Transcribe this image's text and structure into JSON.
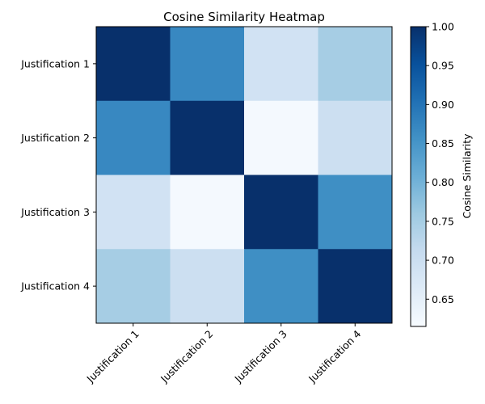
{
  "chart_data": {
    "type": "heatmap",
    "title": "Cosine Similarity Heatmap",
    "rows": [
      "Justification 1",
      "Justification 2",
      "Justification 3",
      "Justification 4"
    ],
    "columns": [
      "Justification 1",
      "Justification 2",
      "Justification 3",
      "Justification 4"
    ],
    "values": [
      [
        1.0,
        0.87,
        0.69,
        0.75
      ],
      [
        0.87,
        1.0,
        0.62,
        0.7
      ],
      [
        0.69,
        0.62,
        1.0,
        0.86
      ],
      [
        0.75,
        0.7,
        0.86,
        1.0
      ]
    ],
    "colormap": "Blues",
    "colorbar": {
      "label": "Cosine Similarity",
      "vmin": 0.615,
      "vmax": 1.0,
      "ticks": [
        "0.65",
        "0.70",
        "0.75",
        "0.80",
        "0.85",
        "0.90",
        "0.95",
        "1.00"
      ]
    },
    "grid": false
  }
}
